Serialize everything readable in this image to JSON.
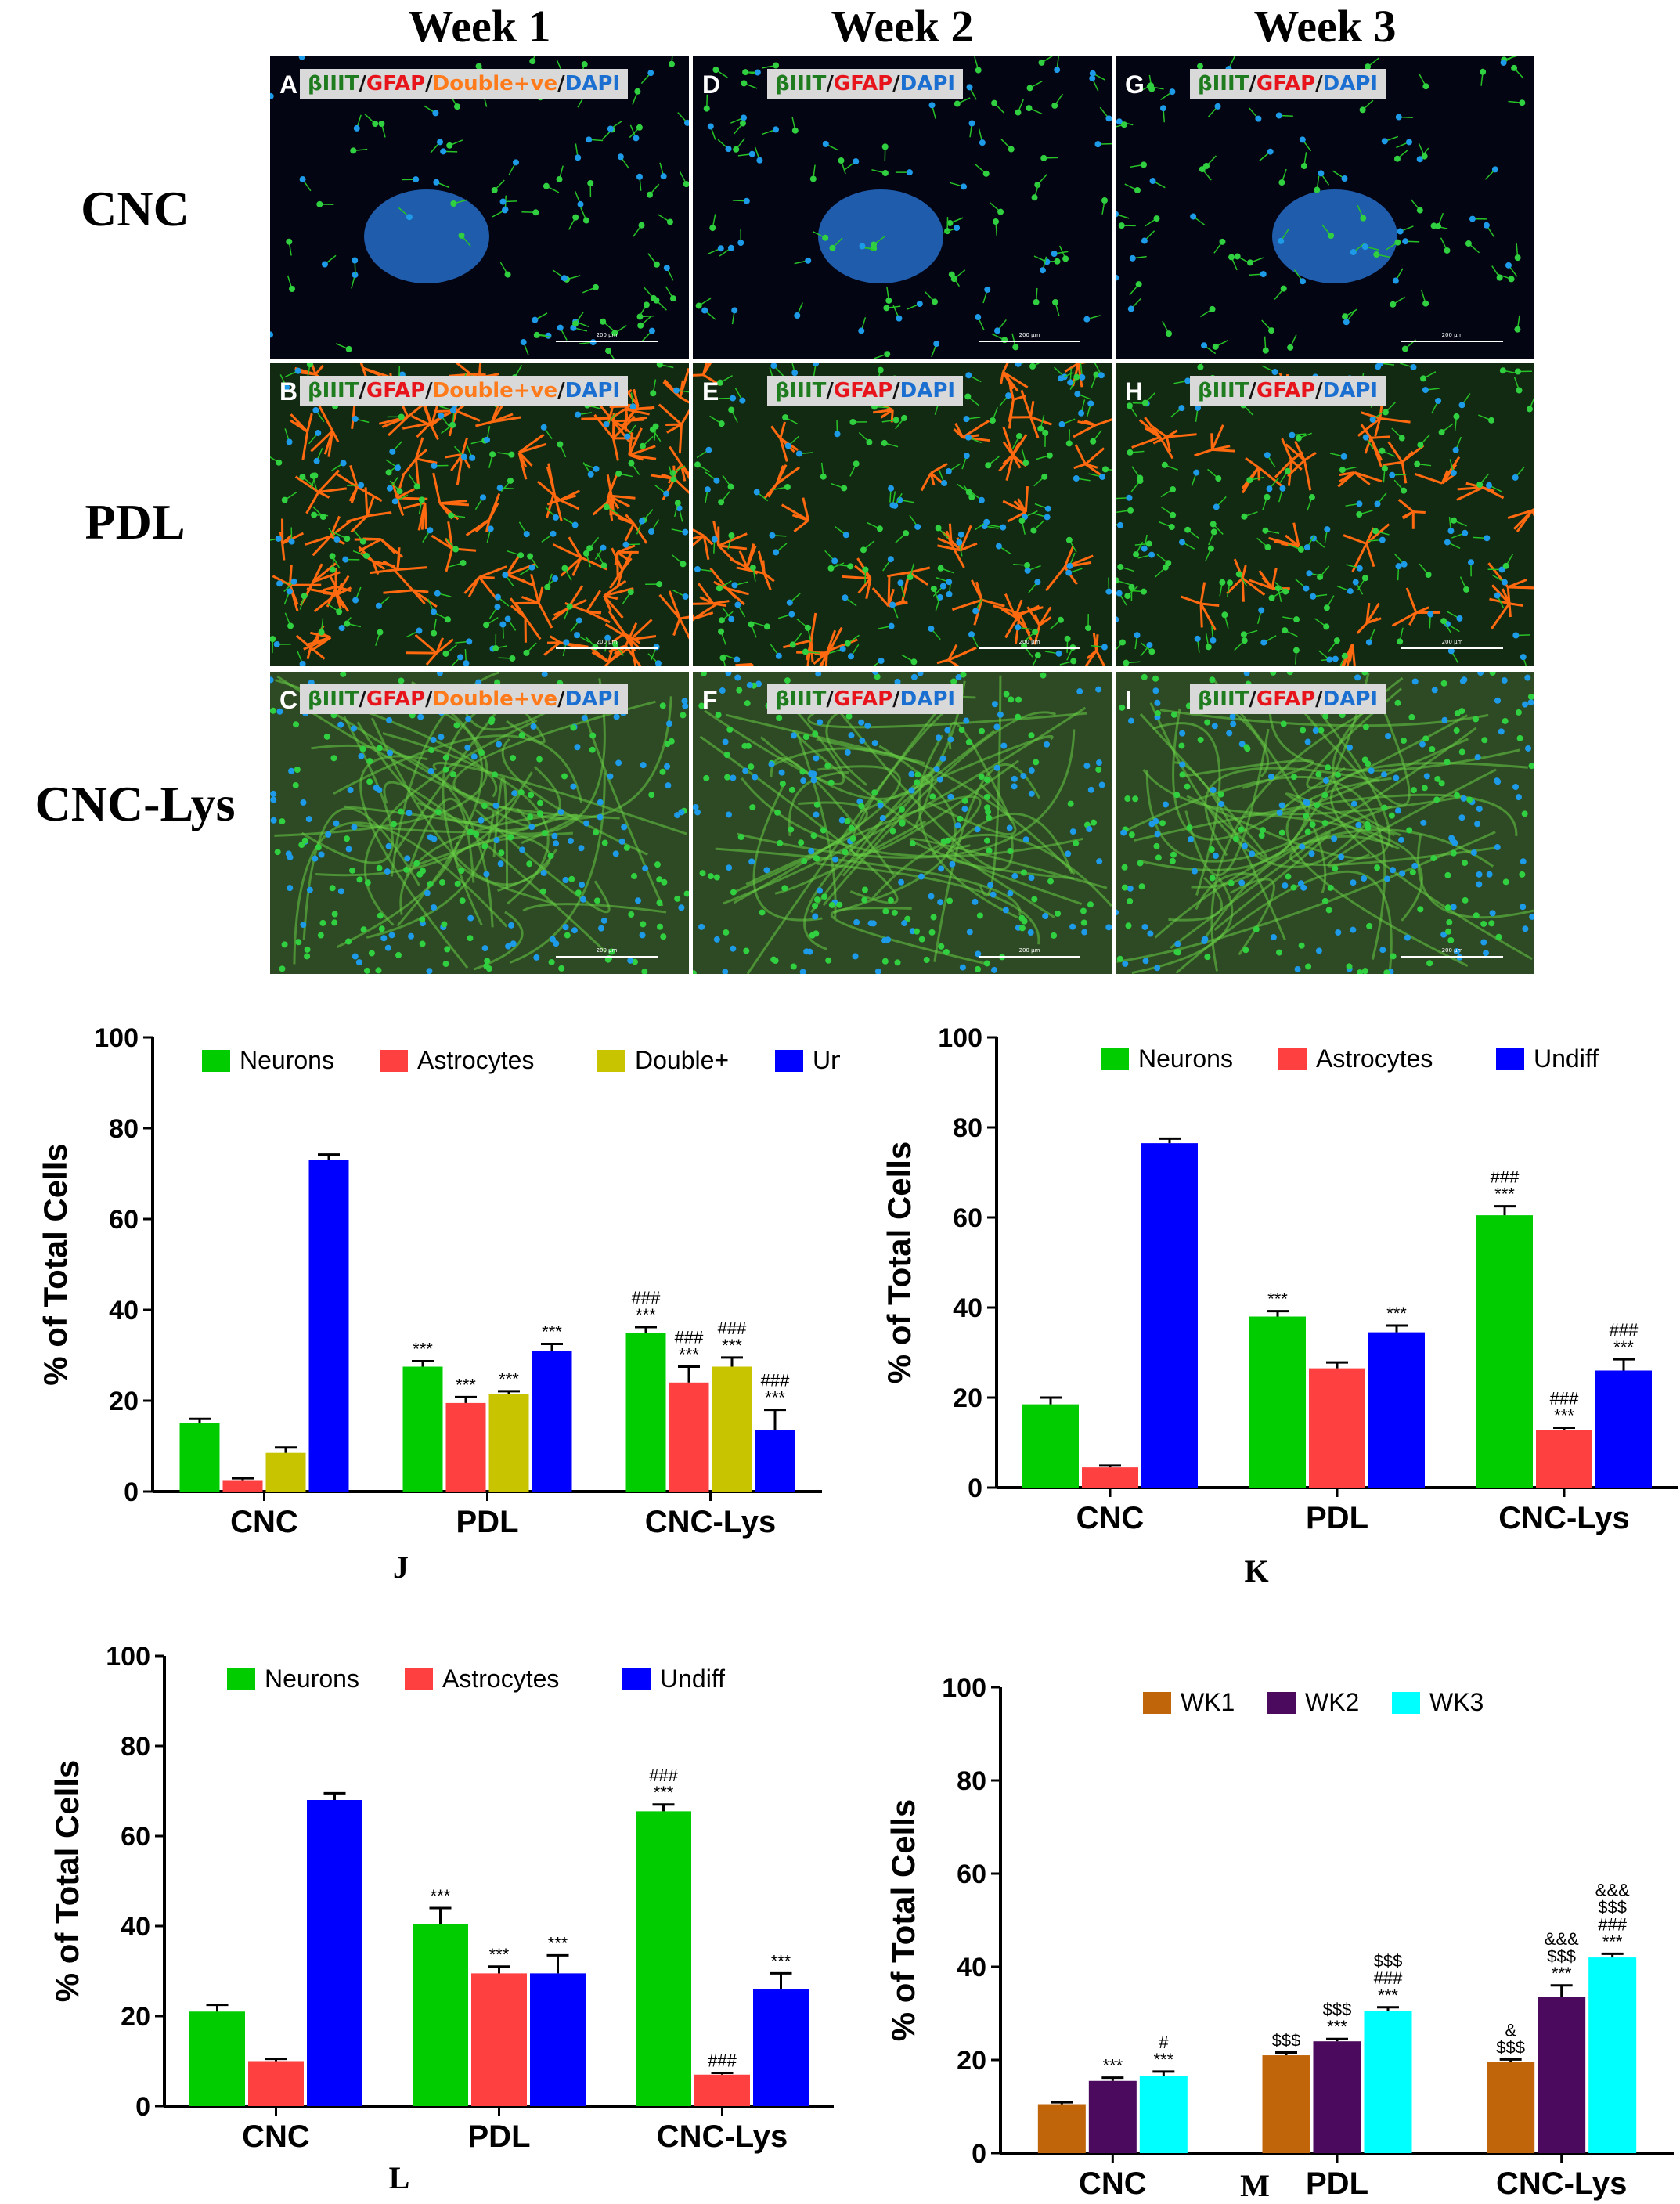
{
  "figure": {
    "columns": [
      "Week 1",
      "Week 2",
      "Week 3"
    ],
    "rows": [
      "CNC",
      "PDL",
      "CNC-Lys"
    ],
    "panels": [
      {
        "letter": "A",
        "row": 0,
        "col": 0,
        "labels": [
          "βIIIT",
          "GFAP",
          "Double+ve",
          "DAPI"
        ],
        "scale": "200 µm"
      },
      {
        "letter": "D",
        "row": 0,
        "col": 1,
        "labels": [
          "βIIIT",
          "GFAP",
          "DAPI"
        ],
        "scale": "200 µm"
      },
      {
        "letter": "G",
        "row": 0,
        "col": 2,
        "labels": [
          "βIIIT",
          "GFAP",
          "DAPI"
        ],
        "scale": "200 µm"
      },
      {
        "letter": "B",
        "row": 1,
        "col": 0,
        "labels": [
          "βIIIT",
          "GFAP",
          "Double+ve",
          "DAPI"
        ],
        "scale": "200 µm"
      },
      {
        "letter": "E",
        "row": 1,
        "col": 1,
        "labels": [
          "βIIIT",
          "GFAP",
          "DAPI"
        ],
        "scale": "200 µm"
      },
      {
        "letter": "H",
        "row": 1,
        "col": 2,
        "labels": [
          "βIIIT",
          "GFAP",
          "DAPI"
        ],
        "scale": "200 µm"
      },
      {
        "letter": "C",
        "row": 2,
        "col": 0,
        "labels": [
          "βIIIT",
          "GFAP",
          "Double+ve",
          "DAPI"
        ],
        "scale": "200 µm"
      },
      {
        "letter": "F",
        "row": 2,
        "col": 1,
        "labels": [
          "βIIIT",
          "GFAP",
          "DAPI"
        ],
        "scale": "200 µm"
      },
      {
        "letter": "I",
        "row": 2,
        "col": 2,
        "labels": [
          "βIIIT",
          "GFAP",
          "DAPI"
        ],
        "scale": "200 µm"
      }
    ],
    "stain_colors": {
      "βIIIT": "#1e7b1e",
      "GFAP": "#e8141c",
      "Double+ve": "#ff7a1a",
      "DAPI": "#1a6fd1"
    }
  },
  "chart_data": [
    {
      "id": "J",
      "type": "bar",
      "panel_label": "J",
      "ylabel": "% of Total Cells",
      "ylim": [
        0,
        100
      ],
      "yticks": [
        0,
        20,
        40,
        60,
        80,
        100
      ],
      "categories": [
        "CNC",
        "PDL",
        "CNC-Lys"
      ],
      "series": [
        {
          "name": "Neurons",
          "color": "#00cc00",
          "values": [
            15,
            27.5,
            35
          ],
          "errors": [
            1,
            1.2,
            1.2
          ],
          "annotations": [
            [],
            [
              "***"
            ],
            [
              "###",
              "***"
            ]
          ]
        },
        {
          "name": "Astrocytes",
          "color": "#ff4040",
          "values": [
            2.5,
            19.5,
            24
          ],
          "errors": [
            0.4,
            1.3,
            3.5
          ],
          "annotations": [
            [],
            [
              "***"
            ],
            [
              "###",
              "***"
            ]
          ]
        },
        {
          "name": "Double+",
          "color": "#c9c400",
          "values": [
            8.5,
            21.5,
            27.5
          ],
          "errors": [
            1.2,
            0.6,
            2
          ],
          "annotations": [
            [],
            [
              "***"
            ],
            [
              "###",
              "***"
            ]
          ]
        },
        {
          "name": "Undiff",
          "color": "#0000ff",
          "values": [
            73,
            31,
            13.5
          ],
          "errors": [
            1.2,
            1.5,
            4.5
          ],
          "annotations": [
            [],
            [
              "***"
            ],
            [
              "###",
              "***"
            ]
          ]
        }
      ]
    },
    {
      "id": "K",
      "type": "bar",
      "panel_label": "K",
      "ylabel": "% of Total Cells",
      "ylim": [
        0,
        100
      ],
      "yticks": [
        0,
        20,
        40,
        60,
        80,
        100
      ],
      "categories": [
        "CNC",
        "PDL",
        "CNC-Lys"
      ],
      "series": [
        {
          "name": "Neurons",
          "color": "#00cc00",
          "values": [
            18.5,
            38,
            60.5
          ],
          "errors": [
            1.5,
            1.2,
            2
          ],
          "annotations": [
            [],
            [
              "***"
            ],
            [
              "###",
              "***"
            ]
          ]
        },
        {
          "name": "Astrocytes",
          "color": "#ff4040",
          "values": [
            4.5,
            26.5,
            12.8
          ],
          "errors": [
            0.4,
            1.3,
            0.5
          ],
          "annotations": [
            [],
            [],
            [
              "###",
              "***"
            ]
          ]
        },
        {
          "name": "Undiff",
          "color": "#0000ff",
          "values": [
            76.5,
            34.5,
            26
          ],
          "errors": [
            1,
            1.5,
            2.5
          ],
          "annotations": [
            [],
            [
              "***"
            ],
            [
              "###",
              "***"
            ]
          ]
        }
      ]
    },
    {
      "id": "L",
      "type": "bar",
      "panel_label": "L",
      "ylabel": "% of Total Cells",
      "ylim": [
        0,
        100
      ],
      "yticks": [
        0,
        20,
        40,
        60,
        80,
        100
      ],
      "categories": [
        "CNC",
        "PDL",
        "CNC-Lys"
      ],
      "series": [
        {
          "name": "Neurons",
          "color": "#00cc00",
          "values": [
            21,
            40.5,
            65.5
          ],
          "errors": [
            1.5,
            3.5,
            1.5
          ],
          "annotations": [
            [],
            [
              "***"
            ],
            [
              "###",
              "***"
            ]
          ]
        },
        {
          "name": "Astrocytes",
          "color": "#ff4040",
          "values": [
            10,
            29.5,
            7
          ],
          "errors": [
            0.5,
            1.5,
            0.4
          ],
          "annotations": [
            [],
            [
              "***"
            ],
            [
              "###"
            ]
          ]
        },
        {
          "name": "Undiff",
          "color": "#0000ff",
          "values": [
            68,
            29.5,
            26
          ],
          "errors": [
            1.5,
            4,
            3.5
          ],
          "annotations": [
            [],
            [
              "***"
            ],
            [
              "***"
            ]
          ]
        }
      ]
    },
    {
      "id": "M",
      "type": "bar",
      "panel_label": "M",
      "ylabel": "% of Total Cells",
      "ylim": [
        0,
        100
      ],
      "yticks": [
        0,
        20,
        40,
        60,
        80,
        100
      ],
      "categories": [
        "CNC",
        "PDL",
        "CNC-Lys"
      ],
      "series": [
        {
          "name": "WK1",
          "color": "#c0650a",
          "values": [
            10.5,
            21,
            19.5
          ],
          "errors": [
            0.4,
            0.6,
            0.6
          ],
          "annotations": [
            [],
            [
              "$$$"
            ],
            [
              "&",
              "$$$"
            ]
          ]
        },
        {
          "name": "WK2",
          "color": "#4b0a5e",
          "values": [
            15.5,
            24,
            33.5
          ],
          "errors": [
            0.7,
            0.5,
            2.5
          ],
          "annotations": [
            [
              "***"
            ],
            [
              "$$$",
              "***"
            ],
            [
              "&&&",
              "$$$",
              "***"
            ]
          ]
        },
        {
          "name": "WK3",
          "color": "#00ffff",
          "values": [
            16.5,
            30.5,
            42
          ],
          "errors": [
            1,
            0.8,
            0.8
          ],
          "annotations": [
            [
              "#",
              "***"
            ],
            [
              "$$$",
              "###",
              "***"
            ],
            [
              "&&&",
              "$$$",
              "###",
              "***"
            ]
          ]
        }
      ]
    }
  ]
}
